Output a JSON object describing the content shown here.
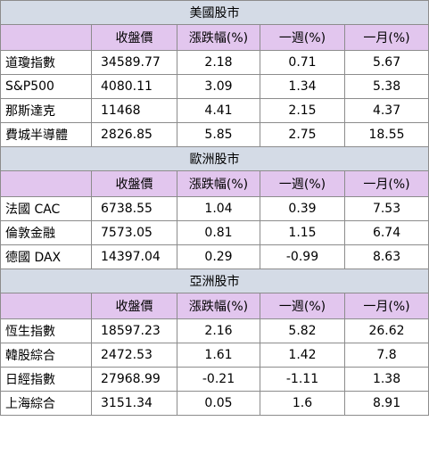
{
  "columns": [
    "",
    "收盤價",
    "漲跌幅(%)",
    "一週(%)",
    "一月(%)"
  ],
  "sections": [
    {
      "title": "美國股市",
      "rows": [
        {
          "name": "道瓊指數",
          "close": "34589.77",
          "change": "2.18",
          "week": "0.71",
          "month": "5.67"
        },
        {
          "name": "S&P500",
          "close": "4080.11",
          "change": "3.09",
          "week": "1.34",
          "month": "5.38"
        },
        {
          "name": "那斯達克",
          "close": "11468",
          "change": "4.41",
          "week": "2.15",
          "month": "4.37"
        },
        {
          "name": "費城半導體",
          "close": "2826.85",
          "change": "5.85",
          "week": "2.75",
          "month": "18.55"
        }
      ]
    },
    {
      "title": "歐洲股市",
      "rows": [
        {
          "name": "法國 CAC",
          "close": "6738.55",
          "change": "1.04",
          "week": "0.39",
          "month": "7.53"
        },
        {
          "name": "倫敦金融",
          "close": "7573.05",
          "change": "0.81",
          "week": "1.15",
          "month": "6.74"
        },
        {
          "name": "德國 DAX",
          "close": "14397.04",
          "change": "0.29",
          "week": "-0.99",
          "month": "8.63"
        }
      ]
    },
    {
      "title": "亞洲股市",
      "rows": [
        {
          "name": "恆生指數",
          "close": "18597.23",
          "change": "2.16",
          "week": "5.82",
          "month": "26.62"
        },
        {
          "name": "韓股綜合",
          "close": "2472.53",
          "change": "1.61",
          "week": "1.42",
          "month": "7.8"
        },
        {
          "name": "日經指數",
          "close": "27968.99",
          "change": "-0.21",
          "week": "-1.11",
          "month": "1.38"
        },
        {
          "name": "上海綜合",
          "close": "3151.34",
          "change": "0.05",
          "week": "1.6",
          "month": "8.91"
        }
      ]
    }
  ],
  "colors": {
    "section_bg": "#d4dbe6",
    "header_bg": "#e2c6ee",
    "border": "#8c8c8c"
  }
}
